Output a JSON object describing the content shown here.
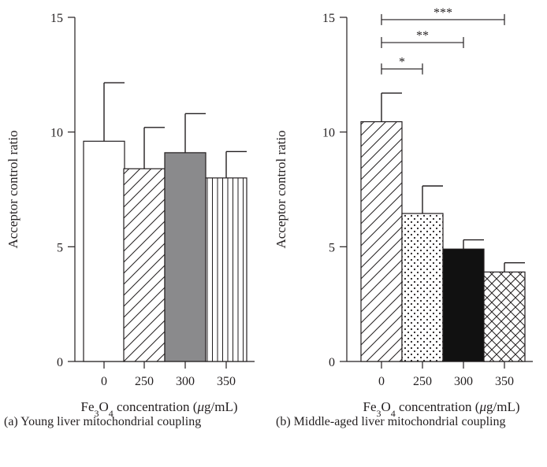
{
  "chart_data": [
    {
      "type": "bar",
      "panel": "(a)",
      "caption": "(a) Young liver mitochondrial coupling",
      "categories": [
        "0",
        "250",
        "300",
        "350"
      ],
      "values": [
        9.6,
        8.4,
        9.1,
        8.0
      ],
      "errors": [
        2.55,
        1.8,
        1.7,
        1.15
      ],
      "bar_patterns": [
        "white",
        "diagonal",
        "gray",
        "vertical"
      ],
      "ylabel": "Acceptor control ratio",
      "xlabel_pre": "Fe",
      "xlabel_sub1": "3",
      "xlabel_mid": "O",
      "xlabel_sub2": "4",
      "xlabel_post": " concentration (",
      "xlabel_mu": "μ",
      "xlabel_end": "g/mL)",
      "ylim": [
        0,
        15
      ],
      "yticks": [
        "0",
        "5",
        "10",
        "15"
      ],
      "significance": []
    },
    {
      "type": "bar",
      "panel": "(b)",
      "caption": "(b) Middle-aged liver mitochondrial coupling",
      "categories": [
        "0",
        "250",
        "300",
        "350"
      ],
      "values": [
        10.45,
        6.45,
        4.9,
        3.9
      ],
      "errors": [
        1.25,
        1.2,
        0.4,
        0.4
      ],
      "bar_patterns": [
        "diagonal",
        "dots",
        "black",
        "crosshatch"
      ],
      "ylabel": "Acceptor control ratio",
      "xlabel_pre": "Fe",
      "xlabel_sub1": "3",
      "xlabel_mid": "O",
      "xlabel_sub2": "4",
      "xlabel_post": " concentration (",
      "xlabel_mu": "μ",
      "xlabel_end": "g/mL)",
      "ylim": [
        0,
        15
      ],
      "yticks": [
        "0",
        "5",
        "10",
        "15"
      ],
      "significance": [
        {
          "from": "0",
          "to": "250",
          "label": "*",
          "y": 12.75
        },
        {
          "from": "0",
          "to": "300",
          "label": "**",
          "y": 13.9
        },
        {
          "from": "0",
          "to": "350",
          "label": "***",
          "y": 14.9
        }
      ]
    }
  ]
}
